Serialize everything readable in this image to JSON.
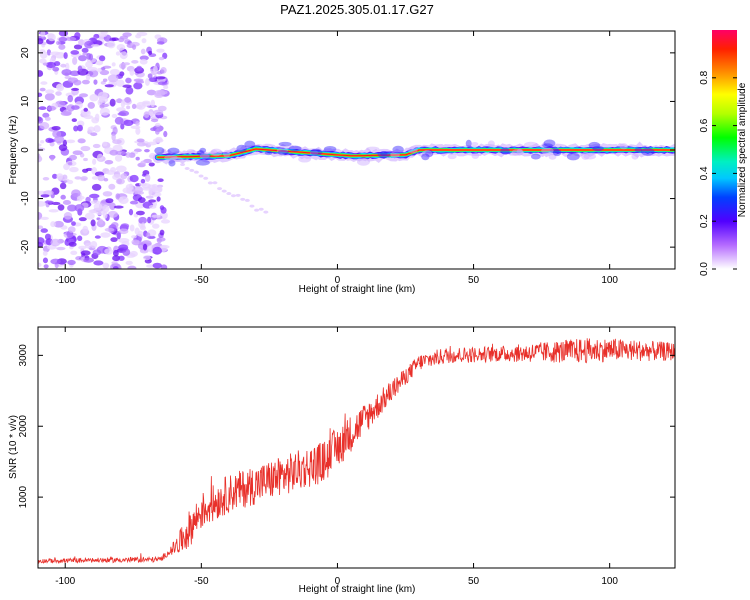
{
  "title": "PAZ1.2025.305.01.17.G27",
  "chart_data": [
    {
      "type": "heatmap",
      "xlabel": "Height of straight line (km)",
      "ylabel": "Frequency (Hz)",
      "xlim": [
        -110,
        124
      ],
      "ylim": [
        -24.5,
        24.5
      ],
      "xticks": [
        -100,
        -50,
        0,
        50,
        100
      ],
      "yticks": [
        -20,
        -10,
        0,
        10,
        20
      ],
      "noise_region_km": [
        -110,
        -65
      ],
      "tone": {
        "start_km": -66,
        "end_km": 124,
        "frequency_hz": [
          {
            "km": -66,
            "hz": -1.5
          },
          {
            "km": -40,
            "hz": -1.2
          },
          {
            "km": -30,
            "hz": 0.2
          },
          {
            "km": -10,
            "hz": -0.6
          },
          {
            "km": 5,
            "hz": -1.2
          },
          {
            "km": 25,
            "hz": -1.0
          },
          {
            "km": 30,
            "hz": 0.0
          },
          {
            "km": 124,
            "hz": 0.0
          }
        ]
      },
      "colorbar": {
        "label": "Normalized spectral amplitude",
        "range": [
          0,
          1
        ],
        "ticks": [
          0.0,
          0.2,
          0.4,
          0.6,
          0.8
        ]
      }
    },
    {
      "type": "line",
      "xlabel": "Height of straight line (km)",
      "ylabel": "SNR (10 * v/v)",
      "xlim": [
        -110,
        124
      ],
      "ylim": [
        0,
        3400
      ],
      "xticks": [
        -100,
        -50,
        0,
        50,
        100
      ],
      "yticks": [
        1000,
        2000,
        3000
      ],
      "color": "#e8302a",
      "trend": [
        {
          "km": -110,
          "snr": 100
        },
        {
          "km": -65,
          "snr": 120
        },
        {
          "km": -58,
          "snr": 350
        },
        {
          "km": -50,
          "snr": 800
        },
        {
          "km": -40,
          "snr": 1050
        },
        {
          "km": -20,
          "snr": 1300
        },
        {
          "km": -5,
          "snr": 1500
        },
        {
          "km": 5,
          "snr": 1900
        },
        {
          "km": 20,
          "snr": 2500
        },
        {
          "km": 30,
          "snr": 2900
        },
        {
          "km": 40,
          "snr": 3000
        },
        {
          "km": 60,
          "snr": 3020
        },
        {
          "km": 80,
          "snr": 3050
        },
        {
          "km": 100,
          "snr": 3080
        },
        {
          "km": 124,
          "snr": 3050
        }
      ],
      "noise_amplitude": [
        {
          "km": -110,
          "amp": 30
        },
        {
          "km": -62,
          "amp": 40
        },
        {
          "km": -55,
          "amp": 260
        },
        {
          "km": 0,
          "amp": 300
        },
        {
          "km": 25,
          "amp": 120
        },
        {
          "km": 60,
          "amp": 110
        },
        {
          "km": 90,
          "amp": 180
        },
        {
          "km": 124,
          "amp": 130
        }
      ]
    }
  ]
}
